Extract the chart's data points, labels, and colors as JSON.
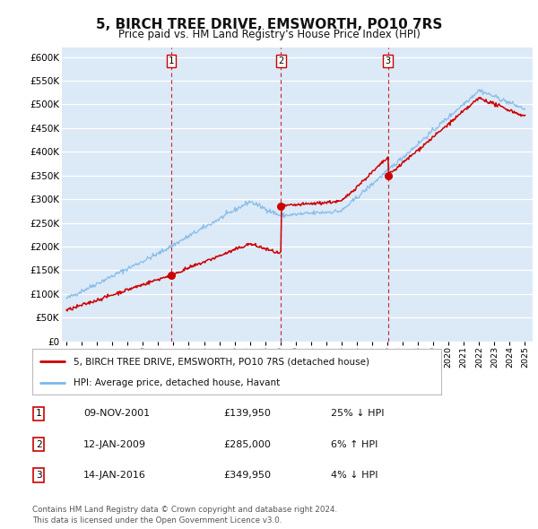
{
  "title": "5, BIRCH TREE DRIVE, EMSWORTH, PO10 7RS",
  "subtitle": "Price paid vs. HM Land Registry's House Price Index (HPI)",
  "plot_bg_color": "#dce9f7",
  "ylim": [
    0,
    620000
  ],
  "yticks": [
    0,
    50000,
    100000,
    150000,
    200000,
    250000,
    300000,
    350000,
    400000,
    450000,
    500000,
    550000,
    600000
  ],
  "ytick_labels": [
    "£0",
    "£50K",
    "£100K",
    "£150K",
    "£200K",
    "£250K",
    "£300K",
    "£350K",
    "£400K",
    "£450K",
    "£500K",
    "£550K",
    "£600K"
  ],
  "xlim_start": 1994.7,
  "xlim_end": 2025.5,
  "sale_dates": [
    2001.86,
    2009.04,
    2016.04
  ],
  "sale_prices": [
    139950,
    285000,
    349950
  ],
  "sale_labels": [
    "1",
    "2",
    "3"
  ],
  "hpi_color": "#7db8e8",
  "price_color": "#cc0000",
  "vline_color": "#cc0000",
  "legend_label_price": "5, BIRCH TREE DRIVE, EMSWORTH, PO10 7RS (detached house)",
  "legend_label_hpi": "HPI: Average price, detached house, Havant",
  "table_rows": [
    [
      "1",
      "09-NOV-2001",
      "£139,950",
      "25% ↓ HPI"
    ],
    [
      "2",
      "12-JAN-2009",
      "£285,000",
      "6% ↑ HPI"
    ],
    [
      "3",
      "14-JAN-2016",
      "£349,950",
      "4% ↓ HPI"
    ]
  ],
  "footnote": "Contains HM Land Registry data © Crown copyright and database right 2024.\nThis data is licensed under the Open Government Licence v3.0.",
  "xtick_years": [
    1995,
    1996,
    1997,
    1998,
    1999,
    2000,
    2001,
    2002,
    2003,
    2004,
    2005,
    2006,
    2007,
    2008,
    2009,
    2010,
    2011,
    2012,
    2013,
    2014,
    2015,
    2016,
    2017,
    2018,
    2019,
    2020,
    2021,
    2022,
    2023,
    2024,
    2025
  ]
}
